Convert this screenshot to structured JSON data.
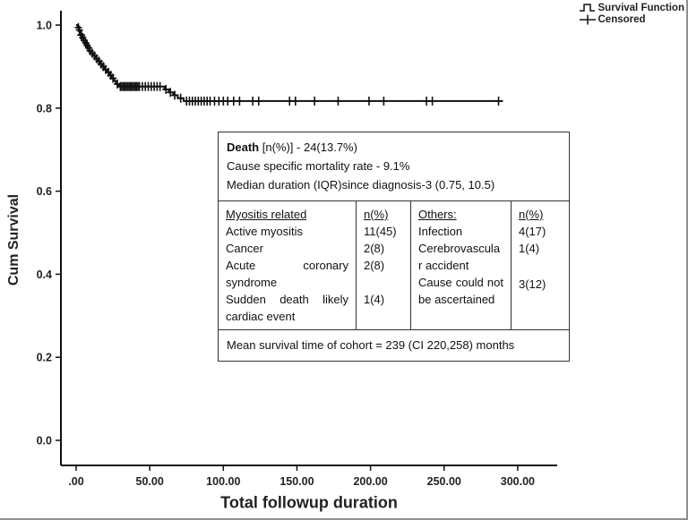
{
  "chart_data": {
    "type": "line",
    "subtype": "kaplan-meier-step",
    "title": "",
    "xlabel": "Total followup duration",
    "ylabel": "Cum Survival",
    "xlim": [
      -10,
      325
    ],
    "ylim": [
      -0.06,
      1.04
    ],
    "grid": false,
    "xticks": {
      "labels": [
        ".00",
        "50.00",
        "100.00",
        "150.00",
        "200.00",
        "250.00",
        "300.00"
      ],
      "values": [
        0,
        50,
        100,
        150,
        200,
        250,
        300
      ]
    },
    "yticks": {
      "labels": [
        "0.0",
        "0.2",
        "0.4",
        "0.6",
        "0.8",
        "1.0"
      ],
      "values": [
        0,
        0.2,
        0.4,
        0.6,
        0.8,
        1.0
      ]
    },
    "legend": {
      "position": "top-right",
      "entries": [
        {
          "label": "Survival Function",
          "marker": "step-line"
        },
        {
          "label": "Censored",
          "marker": "plus"
        }
      ]
    },
    "line_color": "#111111",
    "series": [
      {
        "name": "Survival Function",
        "type": "step",
        "points": [
          [
            0,
            1.0
          ],
          [
            1,
            0.994
          ],
          [
            2,
            0.988
          ],
          [
            2.5,
            0.982
          ],
          [
            3,
            0.976
          ],
          [
            4,
            0.97
          ],
          [
            5,
            0.963
          ],
          [
            6,
            0.957
          ],
          [
            7,
            0.951
          ],
          [
            8,
            0.945
          ],
          [
            9,
            0.938
          ],
          [
            10,
            0.932
          ],
          [
            12,
            0.926
          ],
          [
            13,
            0.919
          ],
          [
            15,
            0.913
          ],
          [
            16,
            0.906
          ],
          [
            18,
            0.9
          ],
          [
            19,
            0.893
          ],
          [
            21,
            0.886
          ],
          [
            23,
            0.879
          ],
          [
            24,
            0.872
          ],
          [
            26,
            0.865
          ],
          [
            27,
            0.858
          ],
          [
            29,
            0.852
          ],
          [
            60,
            0.845
          ],
          [
            63,
            0.838
          ],
          [
            66,
            0.831
          ],
          [
            69,
            0.824
          ],
          [
            73,
            0.817
          ],
          [
            290,
            0.817
          ]
        ]
      },
      {
        "name": "Censored",
        "type": "marker-plus",
        "points": [
          [
            1.5,
            0.994
          ],
          [
            2.2,
            0.988
          ],
          [
            3.2,
            0.976
          ],
          [
            3.6,
            0.976
          ],
          [
            4.5,
            0.97
          ],
          [
            5.5,
            0.963
          ],
          [
            6.5,
            0.957
          ],
          [
            7.5,
            0.951
          ],
          [
            8.5,
            0.945
          ],
          [
            9.5,
            0.938
          ],
          [
            11,
            0.932
          ],
          [
            12.5,
            0.926
          ],
          [
            14,
            0.919
          ],
          [
            15.5,
            0.913
          ],
          [
            17,
            0.906
          ],
          [
            18.5,
            0.9
          ],
          [
            20,
            0.893
          ],
          [
            22,
            0.886
          ],
          [
            23.5,
            0.879
          ],
          [
            25,
            0.872
          ],
          [
            28,
            0.858
          ],
          [
            30,
            0.852
          ],
          [
            31,
            0.852
          ],
          [
            32,
            0.852
          ],
          [
            33,
            0.852
          ],
          [
            34,
            0.852
          ],
          [
            35,
            0.852
          ],
          [
            36,
            0.852
          ],
          [
            37,
            0.852
          ],
          [
            38,
            0.852
          ],
          [
            39,
            0.852
          ],
          [
            40,
            0.852
          ],
          [
            41,
            0.852
          ],
          [
            42,
            0.852
          ],
          [
            43,
            0.852
          ],
          [
            45,
            0.852
          ],
          [
            47,
            0.852
          ],
          [
            49,
            0.852
          ],
          [
            51,
            0.852
          ],
          [
            53,
            0.852
          ],
          [
            55,
            0.852
          ],
          [
            57,
            0.852
          ],
          [
            61,
            0.845
          ],
          [
            64,
            0.838
          ],
          [
            67,
            0.831
          ],
          [
            71,
            0.824
          ],
          [
            75,
            0.817
          ],
          [
            77,
            0.817
          ],
          [
            79,
            0.817
          ],
          [
            81,
            0.817
          ],
          [
            83,
            0.817
          ],
          [
            85,
            0.817
          ],
          [
            87,
            0.817
          ],
          [
            89,
            0.817
          ],
          [
            91,
            0.817
          ],
          [
            94,
            0.817
          ],
          [
            97,
            0.817
          ],
          [
            100,
            0.817
          ],
          [
            103,
            0.817
          ],
          [
            107,
            0.817
          ],
          [
            111,
            0.817
          ],
          [
            120,
            0.817
          ],
          [
            124,
            0.817
          ],
          [
            145,
            0.817
          ],
          [
            149,
            0.817
          ],
          [
            162,
            0.817
          ],
          [
            178,
            0.817
          ],
          [
            199,
            0.817
          ],
          [
            209,
            0.817
          ],
          [
            238,
            0.817
          ],
          [
            242,
            0.817
          ],
          [
            287,
            0.817
          ]
        ]
      }
    ]
  },
  "annotation_box": {
    "death_label": "Death",
    "death_rest": " [n(%)] - 24(13.7%)",
    "line2": "Cause specific mortality rate - 9.1%",
    "line3": "Median duration (IQR)since diagnosis-3 (0.75, 10.5)",
    "table": {
      "col1": {
        "header": "Myositis related",
        "items": [
          "Active myositis",
          "Cancer",
          "Acute coronary syndrome",
          "Sudden death likely cardiac event"
        ]
      },
      "col2": {
        "header": "n(%)",
        "items": [
          "11(45)",
          "2(8)",
          "2(8)",
          "1(4)"
        ]
      },
      "col3": {
        "header": "Others:",
        "items": [
          "Infection",
          "Cerebrovascular accident",
          "Cause could not be ascertained"
        ]
      },
      "col4": {
        "header": "n(%)",
        "items": [
          "4(17)",
          "1(4)",
          "3(12)"
        ]
      }
    },
    "footer": "Mean survival time of cohort = 239 (CI 220,258) months"
  }
}
